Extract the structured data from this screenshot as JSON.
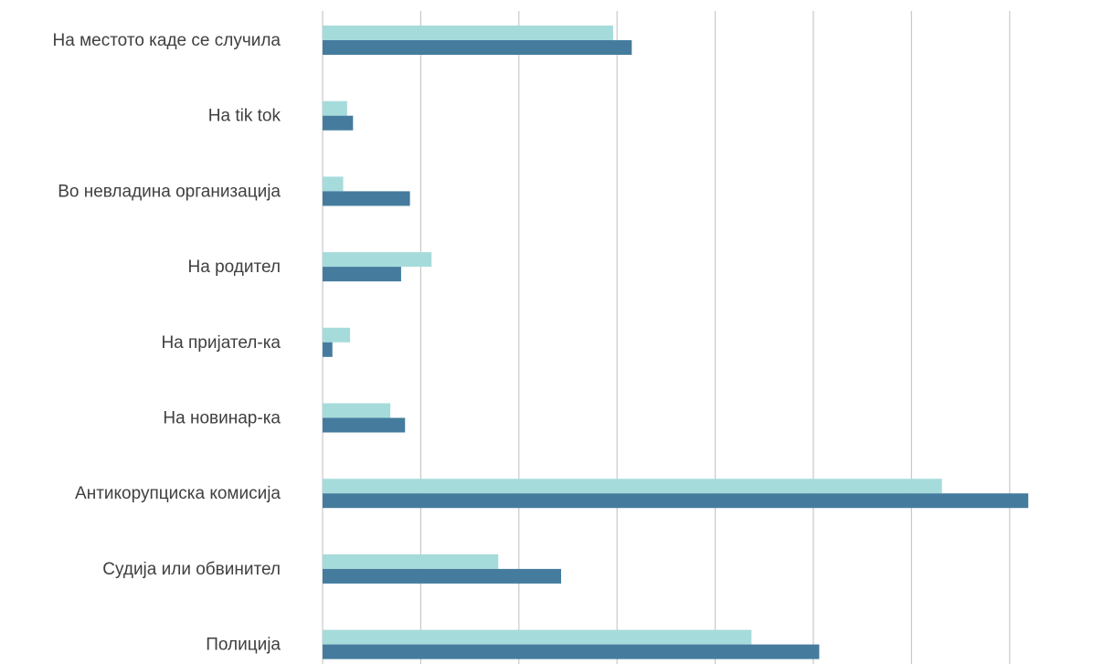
{
  "chart_data": {
    "type": "bar",
    "orientation": "horizontal",
    "title": "",
    "xlabel": "",
    "ylabel": "",
    "categories": [
      "На местото каде се случила",
      "На tik tok",
      "Во невладина организација",
      "На родител",
      "На пријател-ка",
      "На новинар-ка",
      "Антикорупциска комисија",
      "Судија или обвинител",
      "Полиција"
    ],
    "series": [
      {
        "values": [
          2.96,
          0.25,
          0.21,
          1.11,
          0.28,
          0.69,
          6.31,
          1.79,
          4.37
        ],
        "color": "#a6dbdb"
      },
      {
        "values": [
          3.15,
          0.31,
          0.89,
          0.8,
          0.1,
          0.84,
          7.19,
          2.43,
          5.06
        ],
        "color": "#457c9e"
      }
    ],
    "xlim": [
      0,
      7.0
    ],
    "grid": true,
    "legend": "none"
  }
}
